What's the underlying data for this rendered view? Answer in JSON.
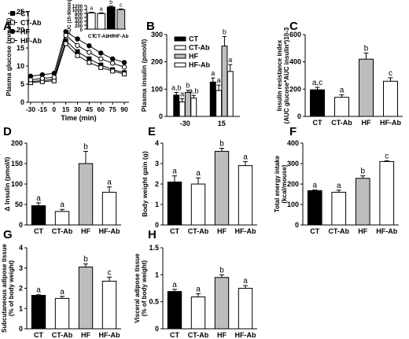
{
  "chart_data": [
    {
      "id": "A",
      "type": "line",
      "panel_letter": "A",
      "xlabel": "Time (min)",
      "ylabel": "Plasma glucose (mmol/l)",
      "xticks": [
        -30,
        -15,
        0,
        15,
        30,
        45,
        60,
        75,
        90
      ],
      "yticks": [
        0,
        5,
        10,
        15,
        20,
        25
      ],
      "ylim": [
        0,
        25
      ],
      "xlim": [
        -33,
        96
      ],
      "legend": [
        "CT",
        "CT-Ab",
        "HF",
        "HF-Ab"
      ],
      "series": [
        {
          "name": "CT",
          "marker": "filled-square",
          "x": [
            -30,
            -15,
            0,
            15,
            30,
            45,
            60,
            75,
            90
          ],
          "y": [
            5.7,
            6.0,
            6.3,
            17.0,
            14.0,
            12.0,
            10.3,
            9.0,
            8.2
          ]
        },
        {
          "name": "CT-Ab",
          "marker": "open-square",
          "x": [
            -30,
            -15,
            0,
            15,
            30,
            45,
            60,
            75,
            90
          ],
          "y": [
            5.4,
            5.7,
            5.9,
            16.2,
            12.9,
            11.0,
            9.6,
            8.6,
            7.8
          ]
        },
        {
          "name": "HF",
          "marker": "filled-circle",
          "x": [
            -30,
            -15,
            0,
            15,
            30,
            45,
            60,
            75,
            90
          ],
          "y": [
            7.2,
            7.6,
            8.0,
            19.5,
            17.5,
            15.6,
            13.6,
            12.0,
            11.0
          ]
        },
        {
          "name": "HF-Ab",
          "marker": "open-circle",
          "x": [
            -30,
            -15,
            0,
            15,
            30,
            45,
            60,
            75,
            90
          ],
          "y": [
            6.2,
            6.6,
            6.9,
            18.5,
            15.7,
            13.8,
            12.0,
            10.8,
            9.7
          ]
        }
      ]
    },
    {
      "id": "A_inset",
      "type": "bar",
      "ylabel": "AUC (15-90min)",
      "yticks": [
        0,
        200,
        400,
        600,
        800,
        1000,
        1200
      ],
      "ylim": [
        0,
        1200
      ],
      "categories": [
        "CT",
        "CT-Ab",
        "HF",
        "HF-Ab"
      ],
      "values": [
        820,
        790,
        1120,
        990
      ],
      "errors": [
        35,
        40,
        50,
        35
      ],
      "letters": [
        "a",
        "a",
        "b",
        "c"
      ],
      "fills": [
        "#ffffff",
        "#ffffff",
        "#000000",
        "#bdbdbd"
      ]
    },
    {
      "id": "B",
      "type": "bar",
      "panel_letter": "B",
      "ylabel": "Plasma insulin (pmol/l)",
      "yticks": [
        0,
        100,
        200,
        300
      ],
      "ylim": [
        0,
        300
      ],
      "groups": [
        "-30",
        "15"
      ],
      "legend": [
        "CT",
        "CT-Ab",
        "HF",
        "HF-Ab"
      ],
      "fills": [
        "#000000",
        "#ffffff",
        "#bdbdbd",
        "#ffffff"
      ],
      "series": [
        {
          "name": "CT",
          "values": [
            78,
            126
          ],
          "errors": [
            10,
            15
          ],
          "letters": [
            "a,b",
            "a"
          ]
        },
        {
          "name": "CT-Ab",
          "values": [
            53,
            95
          ],
          "errors": [
            12,
            20
          ],
          "letters": [
            "a",
            "a"
          ]
        },
        {
          "name": "HF",
          "values": [
            88,
            258
          ],
          "errors": [
            8,
            35
          ],
          "letters": [
            "b",
            "b"
          ]
        },
        {
          "name": "HF-Ab",
          "values": [
            67,
            165
          ],
          "errors": [
            10,
            25
          ],
          "letters": [
            "a,b",
            "a"
          ]
        }
      ]
    },
    {
      "id": "C",
      "type": "bar",
      "panel_letter": "C",
      "ylabel": "Insulin resistance index\n(AUC glucose*AUC insulin*)10-3",
      "yticks": [
        0,
        200,
        400,
        600
      ],
      "ylim": [
        0,
        600
      ],
      "categories": [
        "CT",
        "CT-Ab",
        "HF",
        "HF-Ab"
      ],
      "values": [
        195,
        140,
        420,
        258
      ],
      "errors": [
        18,
        18,
        45,
        25
      ],
      "letters": [
        "a,c",
        "a",
        "b",
        "c"
      ],
      "fills": [
        "#000000",
        "#ffffff",
        "#bdbdbd",
        "#ffffff"
      ]
    },
    {
      "id": "D",
      "type": "bar",
      "panel_letter": "D",
      "ylabel": "Δ Insulin (pmol/l)",
      "yticks": [
        0,
        50,
        100,
        150,
        200
      ],
      "ylim": [
        0,
        200
      ],
      "categories": [
        "CT",
        "CT-Ab",
        "HF",
        "HF-Ab"
      ],
      "values": [
        47,
        33,
        150,
        80
      ],
      "errors": [
        7,
        5,
        30,
        13
      ],
      "letters": [
        "a",
        "a",
        "b",
        "a"
      ],
      "fills": [
        "#000000",
        "#ffffff",
        "#bdbdbd",
        "#ffffff"
      ]
    },
    {
      "id": "E",
      "type": "bar",
      "panel_letter": "E",
      "ylabel": "Body weight gain (g)",
      "yticks": [
        0,
        1,
        2,
        3,
        4
      ],
      "ylim": [
        0,
        4
      ],
      "categories": [
        "CT",
        "CT-Ab",
        "HF",
        "HF-Ab"
      ],
      "values": [
        2.1,
        2.0,
        3.6,
        2.9
      ],
      "errors": [
        0.3,
        0.3,
        0.15,
        0.2
      ],
      "letters": [
        "a",
        "a",
        "b",
        "a"
      ],
      "fills": [
        "#000000",
        "#ffffff",
        "#bdbdbd",
        "#ffffff"
      ]
    },
    {
      "id": "F",
      "type": "bar",
      "panel_letter": "F",
      "ylabel": "Total energy intake\n(kcal/mouse)",
      "yticks": [
        0,
        100,
        200,
        300,
        400
      ],
      "ylim": [
        0,
        400
      ],
      "categories": [
        "CT",
        "CT-Ab",
        "HF",
        "HF-Ab"
      ],
      "values": [
        168,
        160,
        228,
        310
      ],
      "errors": [
        3,
        10,
        12,
        4
      ],
      "letters": [
        "a",
        "a",
        "b",
        "c"
      ],
      "fills": [
        "#000000",
        "#ffffff",
        "#bdbdbd",
        "#ffffff"
      ]
    },
    {
      "id": "G",
      "type": "bar",
      "panel_letter": "G",
      "ylabel": "Subcutaneous adipose tissue\n(% of body weight)",
      "yticks": [
        0,
        1,
        2,
        3,
        4
      ],
      "ylim": [
        0,
        4
      ],
      "categories": [
        "CT",
        "CT-Ab",
        "HF",
        "HF-Ab"
      ],
      "values": [
        1.65,
        1.5,
        3.05,
        2.35
      ],
      "errors": [
        0.03,
        0.1,
        0.15,
        0.2
      ],
      "letters": [
        "a",
        "a",
        "b",
        "c"
      ],
      "fills": [
        "#000000",
        "#ffffff",
        "#bdbdbd",
        "#ffffff"
      ]
    },
    {
      "id": "H",
      "type": "bar",
      "panel_letter": "H",
      "ylabel": "Visceral adipose tissue\n(% of body weight)",
      "yticks": [
        0,
        0.5,
        1.0,
        1.5
      ],
      "ylim": [
        0,
        1.5
      ],
      "categories": [
        "CT",
        "CT-Ab",
        "HF",
        "HF-Ab"
      ],
      "values": [
        0.69,
        0.59,
        0.95,
        0.75
      ],
      "errors": [
        0.04,
        0.06,
        0.05,
        0.05
      ],
      "letters": [
        "a",
        "a",
        "b",
        "a"
      ],
      "fills": [
        "#000000",
        "#ffffff",
        "#bdbdbd",
        "#ffffff"
      ]
    }
  ]
}
